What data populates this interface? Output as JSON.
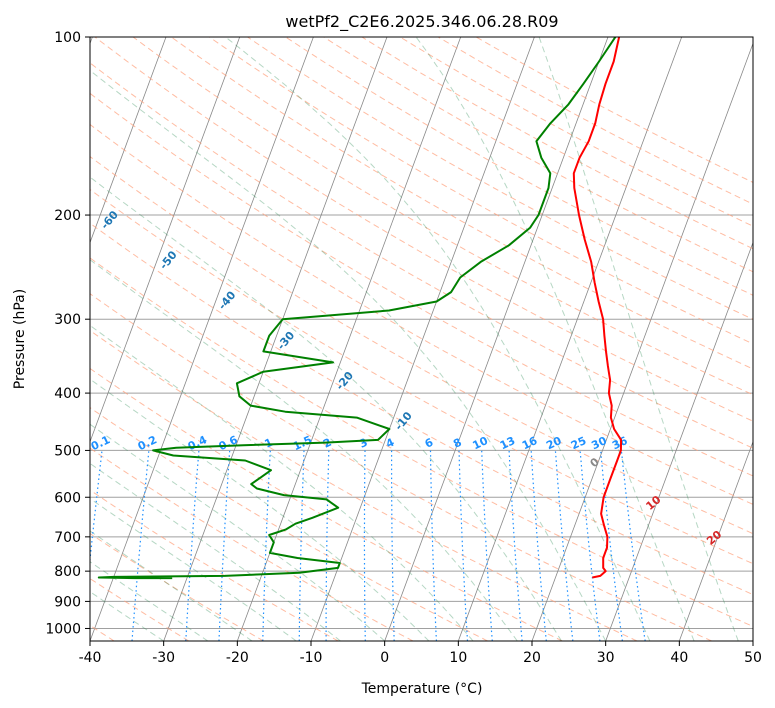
{
  "chart_data": {
    "type": "line",
    "title": "wetPf2_C2E6.2025.346.06.28.R09",
    "xlabel": "Temperature (°C)",
    "ylabel": "Pressure (hPa)",
    "xlim": [
      -40,
      50
    ],
    "ylim": [
      1050,
      100
    ],
    "yscale": "log",
    "x_ticks": [
      -40,
      -30,
      -20,
      -10,
      0,
      10,
      20,
      30,
      40,
      50
    ],
    "y_ticks": [
      100,
      200,
      300,
      400,
      500,
      600,
      700,
      800,
      900,
      1000
    ],
    "grid": true,
    "skew": "skew-T log-p diagram",
    "series": [
      {
        "color": "#ff0000",
        "points": [
          [
            1.5,
            100
          ],
          [
            2,
            110
          ],
          [
            2,
            120
          ],
          [
            2.2,
            130
          ],
          [
            2.6,
            140
          ],
          [
            2.6,
            150
          ],
          [
            2.2,
            160
          ],
          [
            2.2,
            170
          ],
          [
            3,
            180
          ],
          [
            5,
            200
          ],
          [
            7,
            220
          ],
          [
            9,
            240
          ],
          [
            10.5,
            260
          ],
          [
            12,
            280
          ],
          [
            13.5,
            300
          ],
          [
            14.5,
            320
          ],
          [
            15.5,
            340
          ],
          [
            16.5,
            360
          ],
          [
            17,
            370
          ],
          [
            17.5,
            380
          ],
          [
            18,
            400
          ],
          [
            19,
            420
          ],
          [
            19.5,
            440
          ],
          [
            20.5,
            460
          ],
          [
            22,
            480
          ],
          [
            22.5,
            500
          ],
          [
            22.5,
            520
          ],
          [
            22.5,
            560
          ],
          [
            22.5,
            600
          ],
          [
            23,
            640
          ],
          [
            24,
            670
          ],
          [
            25,
            700
          ],
          [
            25.5,
            730
          ],
          [
            25.5,
            760
          ],
          [
            26,
            790
          ],
          [
            26.5,
            800
          ],
          [
            26,
            815
          ],
          [
            25,
            820
          ]
        ]
      },
      {
        "color": "#008000",
        "points": [
          [
            1,
            100
          ],
          [
            0,
            110
          ],
          [
            -1,
            120
          ],
          [
            -2,
            130
          ],
          [
            -3.5,
            140
          ],
          [
            -4.5,
            150
          ],
          [
            -3,
            160
          ],
          [
            -1,
            170
          ],
          [
            -0.5,
            180
          ],
          [
            -0.5,
            200
          ],
          [
            -1,
            210
          ],
          [
            -3,
            225
          ],
          [
            -6,
            240
          ],
          [
            -8,
            255
          ],
          [
            -8.5,
            270
          ],
          [
            -10,
            280
          ],
          [
            -16,
            290
          ],
          [
            -30,
            300
          ],
          [
            -31,
            320
          ],
          [
            -31,
            340
          ],
          [
            -21,
            355
          ],
          [
            -30,
            368
          ],
          [
            -33,
            385
          ],
          [
            -32,
            405
          ],
          [
            -30,
            420
          ],
          [
            -25,
            430
          ],
          [
            -15,
            440
          ],
          [
            -10,
            460
          ],
          [
            -11,
            480
          ],
          [
            -18,
            485
          ],
          [
            -29,
            490
          ],
          [
            -38,
            495
          ],
          [
            -41,
            500
          ],
          [
            -38,
            510
          ],
          [
            -28,
            520
          ],
          [
            -24,
            540
          ],
          [
            -25,
            555
          ],
          [
            -26,
            570
          ],
          [
            -25,
            580
          ],
          [
            -21,
            595
          ],
          [
            -15,
            605
          ],
          [
            -13,
            625
          ],
          [
            -16,
            650
          ],
          [
            -18,
            665
          ],
          [
            -19,
            680
          ],
          [
            -21,
            695
          ],
          [
            -20,
            715
          ],
          [
            -20,
            745
          ],
          [
            -16,
            760
          ],
          [
            -10,
            775
          ],
          [
            -10,
            790
          ],
          [
            -15,
            805
          ],
          [
            -25,
            815
          ],
          [
            -40,
            818
          ],
          [
            -42,
            820
          ],
          [
            -37,
            822
          ],
          [
            -32,
            822
          ]
        ]
      }
    ],
    "dry_adiabats": [
      -100,
      -90,
      -80,
      -70,
      -60,
      -50,
      -40,
      -30,
      -20,
      -10
    ],
    "moist_adiabats": [
      0,
      10,
      20,
      30,
      40
    ],
    "mixing_ratios": [
      "0.1",
      "0.2",
      "0.4",
      "0.6",
      "1",
      "1.5",
      "2",
      "3",
      "4",
      "6",
      "8",
      "10",
      "13",
      "16",
      "20",
      "25",
      "30",
      "36"
    ],
    "colors": {
      "temperature": "#ff0000",
      "dewpoint": "#008000",
      "dry_adiabat": "#ffa07a",
      "moist_adiabat": "#2e8b57",
      "mixing_ratio": "#1e90ff",
      "isotherm": "#888888",
      "dry_label": "#1f77b4",
      "moist_label": "#d62728",
      "mixing_label": "#1e90ff"
    }
  }
}
